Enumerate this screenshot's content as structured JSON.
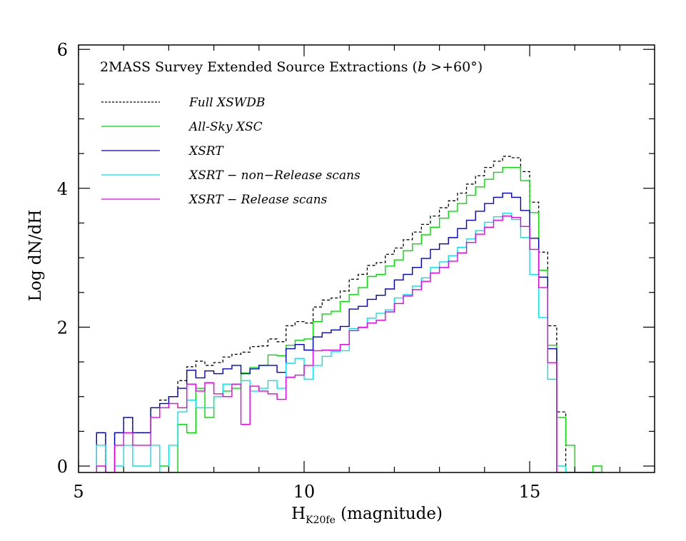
{
  "chart_data": {
    "type": "histogram-step",
    "title": "2MASS Survey Extended Source Extractions (",
    "title_var": "b",
    "title_cond": " >+60°)",
    "xlabel_main": "H",
    "xlabel_sub": "K20fe",
    "xlabel_rest": " (magnitude)",
    "ylabel": "Log dN/dH",
    "xlim": [
      5,
      17.77
    ],
    "ylim": [
      0,
      6
    ],
    "xticks_major": [
      5,
      10,
      15
    ],
    "xtick_labels": [
      "5",
      "10",
      "15"
    ],
    "yticks_major": [
      0,
      2,
      4,
      6
    ],
    "ytick_labels": [
      "0",
      "2",
      "4",
      "6"
    ],
    "x_minor_step": 1,
    "y_minor_step": 0.5,
    "bin_width": 0.2,
    "bin_left_edges": [
      5.4,
      5.6,
      5.8,
      6.0,
      6.2,
      6.4,
      6.6,
      6.8,
      7.0,
      7.2,
      7.4,
      7.6,
      7.8,
      8.0,
      8.2,
      8.4,
      8.6,
      8.8,
      9.0,
      9.2,
      9.4,
      9.6,
      9.8,
      10.0,
      10.2,
      10.4,
      10.6,
      10.8,
      11.0,
      11.2,
      11.4,
      11.6,
      11.8,
      12.0,
      12.2,
      12.4,
      12.6,
      12.8,
      13.0,
      13.2,
      13.4,
      13.6,
      13.8,
      14.0,
      14.2,
      14.4,
      14.6,
      14.8,
      15.0,
      15.2,
      15.4,
      15.6,
      15.8,
      16.0,
      16.2,
      16.4
    ],
    "legend_position": "top-left",
    "series": [
      {
        "name": "Full XSWDB",
        "color": "#000000",
        "dashed": true,
        "values": [
          0.48,
          null,
          0.48,
          0.7,
          0.48,
          0.48,
          0.84,
          0.95,
          1.0,
          1.23,
          1.43,
          1.51,
          1.45,
          1.49,
          1.57,
          1.61,
          1.64,
          1.72,
          1.73,
          1.83,
          1.79,
          2.02,
          2.08,
          2.06,
          2.29,
          2.39,
          2.42,
          2.52,
          2.69,
          2.76,
          2.89,
          2.93,
          3.05,
          3.14,
          3.26,
          3.37,
          3.48,
          3.6,
          3.72,
          3.82,
          3.93,
          4.06,
          4.18,
          4.3,
          4.39,
          4.46,
          4.44,
          4.24,
          3.8,
          3.08,
          2.02,
          0.78,
          null,
          null,
          null,
          null
        ]
      },
      {
        "name": "All-Sky XSC",
        "color": "#00dd00",
        "dashed": false,
        "values": [
          null,
          null,
          null,
          null,
          null,
          null,
          null,
          0,
          null,
          0.6,
          0.48,
          1.12,
          0.7,
          1.0,
          1.08,
          1.12,
          1.34,
          1.42,
          1.45,
          1.6,
          1.59,
          1.74,
          1.81,
          1.83,
          2.08,
          2.19,
          2.23,
          2.37,
          2.47,
          2.57,
          2.73,
          2.76,
          2.88,
          2.97,
          3.1,
          3.2,
          3.33,
          3.44,
          3.57,
          3.67,
          3.78,
          3.9,
          4.02,
          4.13,
          4.23,
          4.3,
          4.3,
          4.11,
          3.65,
          2.82,
          1.74,
          0.7,
          0.3,
          null,
          null,
          0
        ]
      },
      {
        "name": "XSRT",
        "color": "#0000cc",
        "dashed": false,
        "values": [
          0.48,
          null,
          0.48,
          0.7,
          0.48,
          0.48,
          0.84,
          0.9,
          1.0,
          1.12,
          1.38,
          1.27,
          1.37,
          1.33,
          1.4,
          1.45,
          1.33,
          1.4,
          1.45,
          1.45,
          1.35,
          1.69,
          1.75,
          1.67,
          1.86,
          1.92,
          1.96,
          2.01,
          2.26,
          2.3,
          2.4,
          2.46,
          2.55,
          2.68,
          2.76,
          2.86,
          2.99,
          3.12,
          3.2,
          3.29,
          3.42,
          3.54,
          3.67,
          3.78,
          3.87,
          3.93,
          3.87,
          3.68,
          3.28,
          2.72,
          1.69,
          null,
          null,
          null,
          null,
          null
        ]
      },
      {
        "name": "XSRT − non−Release scans",
        "color": "#00e5ee",
        "dashed": false,
        "values": [
          0.3,
          null,
          0,
          0.3,
          0,
          0,
          0.3,
          null,
          0.3,
          0.78,
          0.95,
          0.84,
          0.84,
          1.0,
          1.18,
          1.18,
          1.23,
          1.08,
          1.12,
          1.23,
          1.12,
          1.48,
          1.55,
          1.25,
          1.45,
          1.58,
          1.65,
          1.66,
          1.98,
          1.99,
          2.13,
          2.2,
          2.25,
          2.42,
          2.47,
          2.59,
          2.71,
          2.86,
          2.94,
          3.03,
          3.15,
          3.27,
          3.39,
          3.51,
          3.59,
          3.64,
          3.55,
          3.29,
          2.76,
          2.14,
          1.25,
          0,
          null,
          null,
          null,
          null
        ]
      },
      {
        "name": "XSRT − Release scans",
        "color": "#e600e6",
        "dashed": false,
        "values": [
          0,
          null,
          0.3,
          0.48,
          0.3,
          0.3,
          0.7,
          0.84,
          0.9,
          0.84,
          1.18,
          1.08,
          1.2,
          1.04,
          1.0,
          1.18,
          0.6,
          1.15,
          1.08,
          1.04,
          0.96,
          1.28,
          1.31,
          1.45,
          1.66,
          1.67,
          1.67,
          1.75,
          1.95,
          2.0,
          2.06,
          2.1,
          2.22,
          2.34,
          2.45,
          2.54,
          2.66,
          2.78,
          2.86,
          2.95,
          3.07,
          3.22,
          3.34,
          3.44,
          3.54,
          3.6,
          3.58,
          3.45,
          3.12,
          2.57,
          1.49,
          null,
          null,
          null,
          null,
          null
        ]
      }
    ]
  }
}
